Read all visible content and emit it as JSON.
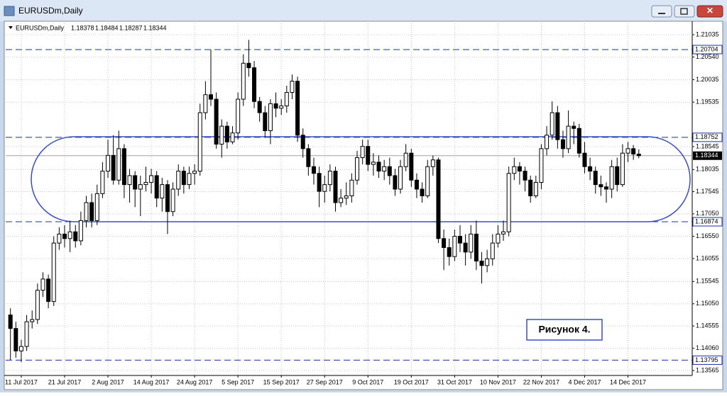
{
  "window": {
    "title": "EURUSDm,Daily"
  },
  "chart_data": {
    "type": "candlestick",
    "title": "EURUSDm,Daily",
    "categories": [
      null,
      null,
      "11 Jul 2017",
      null,
      null,
      null,
      null,
      null,
      null,
      null,
      "21 Jul 2017",
      null,
      null,
      null,
      null,
      null,
      null,
      null,
      "2 Aug 2017",
      null,
      null,
      null,
      null,
      null,
      null,
      null,
      "14 Aug 2017",
      null,
      null,
      null,
      null,
      null,
      null,
      null,
      "24 Aug 2017",
      null,
      null,
      null,
      null,
      null,
      null,
      null,
      "5 Sep 2017",
      null,
      null,
      null,
      null,
      null,
      null,
      null,
      "15 Sep 2017",
      null,
      null,
      null,
      null,
      null,
      null,
      null,
      "27 Sep 2017",
      null,
      null,
      null,
      null,
      null,
      null,
      null,
      "9 Oct 2017",
      null,
      null,
      null,
      null,
      null,
      null,
      null,
      "19 Oct 2017",
      null,
      null,
      null,
      null,
      null,
      null,
      null,
      "31 Oct 2017",
      null,
      null,
      null,
      null,
      null,
      null,
      null,
      "10 Nov 2017",
      null,
      null,
      null,
      null,
      null,
      null,
      null,
      "22 Nov 2017",
      null,
      null,
      null,
      null,
      null,
      null,
      null,
      "4 Dec 2017",
      null,
      null,
      null,
      null,
      null,
      null,
      null,
      "14 Dec 2017",
      null,
      null
    ],
    "open": [
      1.148,
      1.145,
      1.14,
      1.141,
      1.1465,
      1.147,
      1.1535,
      1.156,
      1.151,
      1.164,
      1.166,
      1.165,
      1.1665,
      1.1645,
      1.169,
      1.173,
      1.169,
      1.175,
      1.18,
      1.1835,
      1.178,
      1.185,
      1.177,
      1.179,
      1.176,
      1.177,
      1.1775,
      1.179,
      1.174,
      1.177,
      1.171,
      1.176,
      1.18,
      1.177,
      1.1795,
      1.18,
      1.193,
      1.197,
      1.196,
      1.186,
      1.19,
      1.1865,
      1.1885,
      1.196,
      1.204,
      1.203,
      1.1955,
      1.193,
      1.189,
      1.195,
      1.194,
      1.1945,
      1.1975,
      1.2,
      1.188,
      1.185,
      1.181,
      1.1795,
      1.1755,
      1.177,
      1.18,
      1.173,
      1.174,
      1.1745,
      1.178,
      1.183,
      1.1855,
      1.1815,
      1.182,
      1.18,
      1.181,
      1.179,
      1.176,
      1.181,
      1.184,
      1.178,
      1.176,
      1.1745,
      1.181,
      1.1825,
      1.165,
      1.163,
      1.161,
      1.1655,
      1.164,
      1.162,
      1.166,
      1.16,
      1.159,
      1.1605,
      1.164,
      1.166,
      1.1665,
      1.1795,
      1.181,
      1.18,
      1.178,
      1.1745,
      1.1775,
      1.185,
      1.188,
      1.193,
      1.187,
      1.185,
      1.19,
      1.1895,
      1.184,
      1.181,
      1.18,
      1.177,
      1.1765,
      1.176,
      1.181,
      1.177,
      1.184,
      1.185,
      1.18378
    ],
    "high": [
      1.1495,
      1.1465,
      1.1425,
      1.148,
      1.149,
      1.155,
      1.1575,
      1.157,
      1.1655,
      1.1675,
      1.168,
      1.169,
      1.168,
      1.171,
      1.1745,
      1.175,
      1.177,
      1.182,
      1.187,
      1.188,
      1.189,
      1.186,
      1.1805,
      1.18,
      1.179,
      1.181,
      1.1805,
      1.18,
      1.1785,
      1.178,
      1.1775,
      1.1815,
      1.181,
      1.181,
      1.1815,
      1.195,
      1.2,
      1.207,
      1.1975,
      1.1915,
      1.191,
      1.19,
      1.1975,
      1.206,
      1.2092,
      1.2045,
      1.1965,
      1.1945,
      1.196,
      1.1975,
      1.196,
      1.199,
      1.2015,
      1.201,
      1.1895,
      1.186,
      1.183,
      1.181,
      1.179,
      1.1815,
      1.181,
      1.176,
      1.1775,
      1.1795,
      1.1845,
      1.187,
      1.187,
      1.184,
      1.1835,
      1.1825,
      1.183,
      1.1805,
      1.1825,
      1.186,
      1.185,
      1.1795,
      1.1775,
      1.1825,
      1.1835,
      1.183,
      1.167,
      1.165,
      1.167,
      1.168,
      1.166,
      1.168,
      1.169,
      1.162,
      1.1625,
      1.166,
      1.168,
      1.169,
      1.181,
      1.183,
      1.182,
      1.181,
      1.179,
      1.179,
      1.186,
      1.19,
      1.1955,
      1.1945,
      1.189,
      1.1935,
      1.191,
      1.1905,
      1.1865,
      1.183,
      1.181,
      1.179,
      1.1775,
      1.1825,
      1.183,
      1.186,
      1.1865,
      1.1858,
      1.18484
    ],
    "low": [
      1.138,
      1.1385,
      1.1375,
      1.14,
      1.145,
      1.146,
      1.152,
      1.1495,
      1.15,
      1.1625,
      1.163,
      1.162,
      1.163,
      1.1635,
      1.1675,
      1.1675,
      1.168,
      1.174,
      1.1785,
      1.177,
      1.177,
      1.174,
      1.173,
      1.172,
      1.17,
      1.1755,
      1.175,
      1.172,
      1.171,
      1.166,
      1.17,
      1.1745,
      1.175,
      1.176,
      1.177,
      1.179,
      1.1915,
      1.1945,
      1.185,
      1.183,
      1.185,
      1.186,
      1.187,
      1.1945,
      1.201,
      1.194,
      1.191,
      1.1875,
      1.186,
      1.192,
      1.1925,
      1.193,
      1.196,
      1.1865,
      1.183,
      1.179,
      1.177,
      1.172,
      1.173,
      1.1755,
      1.171,
      1.172,
      1.1725,
      1.173,
      1.177,
      1.1815,
      1.18,
      1.179,
      1.1785,
      1.178,
      1.177,
      1.1745,
      1.175,
      1.18,
      1.1765,
      1.174,
      1.173,
      1.174,
      1.179,
      1.164,
      1.158,
      1.159,
      1.16,
      1.162,
      1.159,
      1.1605,
      1.158,
      1.155,
      1.1575,
      1.159,
      1.163,
      1.1645,
      1.1655,
      1.178,
      1.177,
      1.1755,
      1.173,
      1.174,
      1.176,
      1.1835,
      1.187,
      1.185,
      1.183,
      1.184,
      1.186,
      1.183,
      1.1795,
      1.178,
      1.175,
      1.1745,
      1.173,
      1.174,
      1.1755,
      1.1765,
      1.182,
      1.1825,
      1.18287
    ],
    "close": [
      1.145,
      1.14,
      1.141,
      1.1465,
      1.147,
      1.1535,
      1.156,
      1.151,
      1.164,
      1.166,
      1.165,
      1.1665,
      1.1645,
      1.169,
      1.173,
      1.169,
      1.175,
      1.18,
      1.1835,
      1.178,
      1.185,
      1.177,
      1.179,
      1.176,
      1.177,
      1.1775,
      1.179,
      1.174,
      1.177,
      1.171,
      1.176,
      1.18,
      1.177,
      1.1795,
      1.18,
      1.193,
      1.197,
      1.196,
      1.186,
      1.19,
      1.1865,
      1.1885,
      1.196,
      1.204,
      1.203,
      1.1955,
      1.193,
      1.189,
      1.195,
      1.194,
      1.1945,
      1.1975,
      1.2,
      1.188,
      1.185,
      1.181,
      1.1795,
      1.1755,
      1.177,
      1.18,
      1.173,
      1.174,
      1.1745,
      1.178,
      1.183,
      1.1855,
      1.1815,
      1.182,
      1.18,
      1.181,
      1.179,
      1.176,
      1.181,
      1.184,
      1.178,
      1.176,
      1.1745,
      1.181,
      1.1825,
      1.165,
      1.163,
      1.161,
      1.1655,
      1.164,
      1.162,
      1.166,
      1.16,
      1.159,
      1.1605,
      1.164,
      1.166,
      1.1665,
      1.1795,
      1.181,
      1.18,
      1.178,
      1.1745,
      1.1775,
      1.185,
      1.188,
      1.193,
      1.187,
      1.185,
      1.19,
      1.1895,
      1.184,
      1.181,
      1.18,
      1.177,
      1.1765,
      1.176,
      1.181,
      1.177,
      1.184,
      1.185,
      1.1838,
      1.18344
    ],
    "ylim": [
      1.13455,
      1.21208
    ],
    "yticks": [
      1.21035,
      {
        "value": 1.2054,
        "label": "1.20540"
      },
      1.20035,
      1.19535,
      1.18545,
      1.18035,
      1.17545,
      {
        "value": 1.1705,
        "label": "1.17050"
      },
      {
        "value": 1.1655,
        "label": "1.16550"
      },
      1.16055,
      1.15545,
      {
        "value": 1.1505,
        "label": "1.15050"
      },
      1.14555,
      {
        "value": 1.1406,
        "label": "1.14060"
      },
      1.13565
    ],
    "levels": [
      1.20704,
      1.18752,
      1.16874,
      1.13795
    ],
    "current_price": 1.18344,
    "annotation": "Рисунок 4.",
    "grid": true
  }
}
